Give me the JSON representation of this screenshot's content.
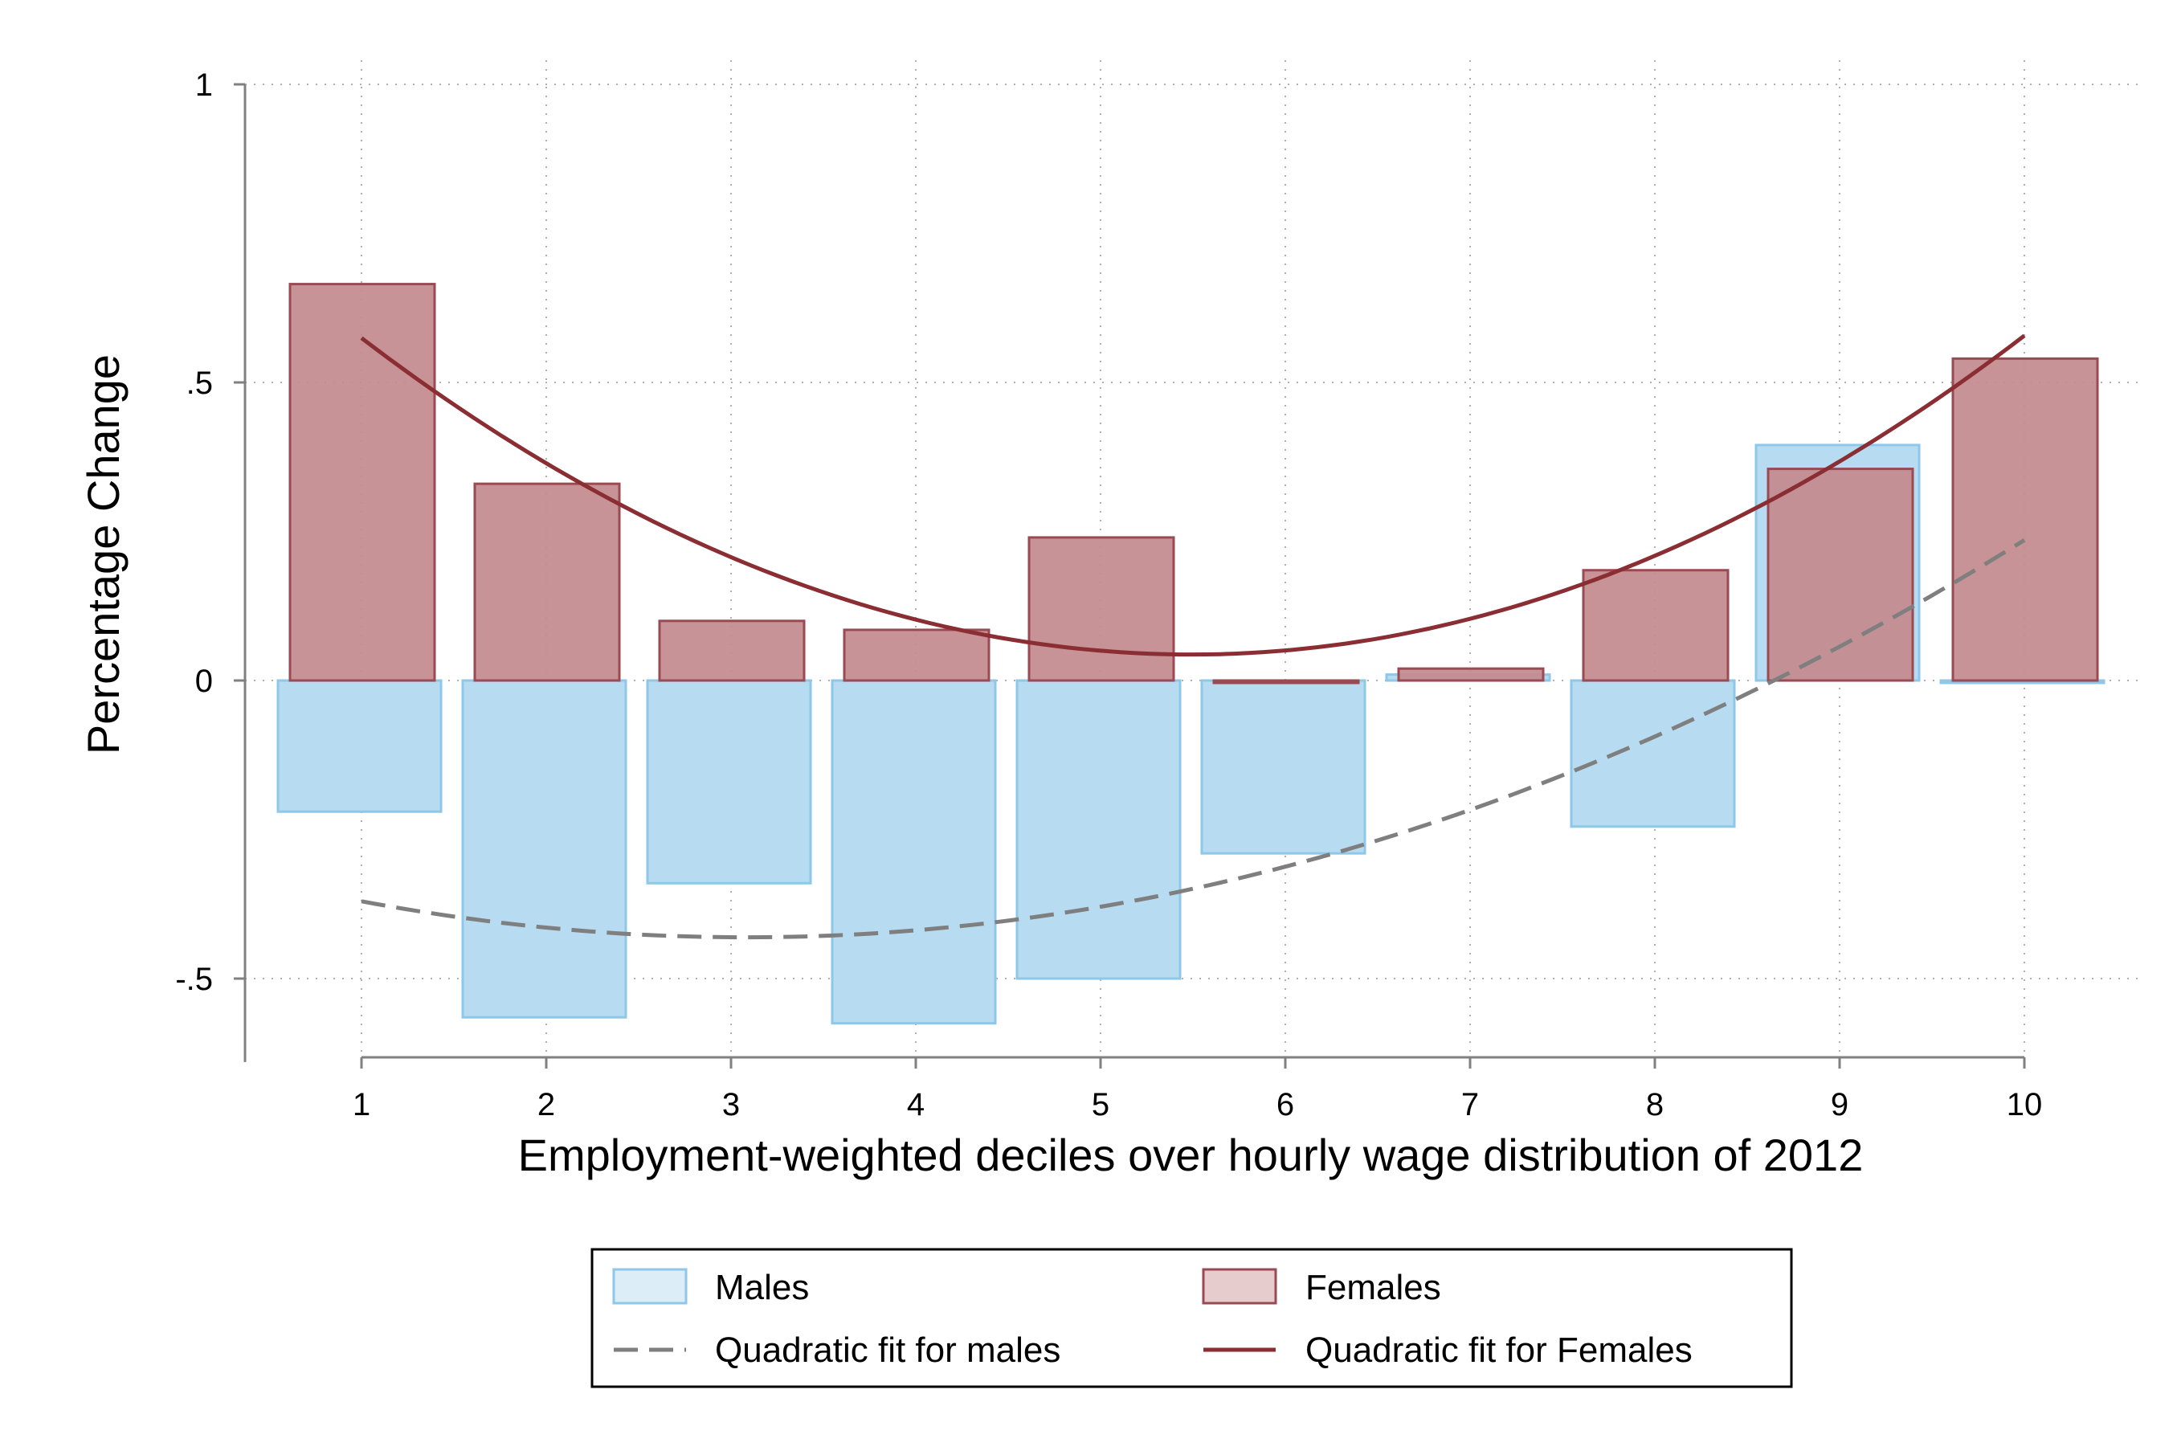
{
  "chart_data": {
    "type": "bar",
    "categories": [
      "1",
      "2",
      "3",
      "4",
      "5",
      "6",
      "7",
      "8",
      "9",
      "10"
    ],
    "x": [
      1,
      2,
      3,
      4,
      5,
      6,
      7,
      8,
      9,
      10
    ],
    "series": [
      {
        "name": "Males",
        "values": [
          -0.22,
          -0.565,
          -0.34,
          -0.575,
          -0.5,
          -0.29,
          0.01,
          -0.245,
          0.395,
          -0.003
        ]
      },
      {
        "name": "Females",
        "values": [
          0.665,
          0.33,
          0.1,
          0.085,
          0.24,
          -0.003,
          0.02,
          0.185,
          0.355,
          0.54
        ]
      }
    ],
    "fits": [
      {
        "name": "Quadratic fit for males",
        "style": "dashed",
        "color": "#7f7f7f",
        "y": [
          -0.37,
          -0.415,
          -0.432,
          -0.418,
          -0.38,
          -0.31,
          -0.215,
          -0.095,
          0.05,
          0.24
        ]
      },
      {
        "name": "Quadratic fit for Females",
        "style": "solid",
        "color": "#8b2e33",
        "y": [
          0.6,
          0.355,
          0.19,
          0.085,
          0.037,
          0.05,
          0.12,
          0.25,
          0.37,
          0.55
        ]
      }
    ],
    "xlabel": "Employment-weighted deciles over hourly wage distribution of 2012",
    "ylabel": "Percentage Change",
    "ylim": [
      -0.64,
      1.0
    ],
    "xlim": [
      0.33,
      10.65
    ],
    "yticks": [
      -0.5,
      0,
      0.5,
      1
    ],
    "ytick_labels": [
      "-.5",
      "0",
      ".5",
      "1"
    ],
    "xticks": [
      1,
      2,
      3,
      4,
      5,
      6,
      7,
      8,
      9,
      10
    ],
    "xtick_labels": [
      "1",
      "2",
      "3",
      "4",
      "5",
      "6",
      "7",
      "8",
      "9",
      "10"
    ],
    "grid": true,
    "legend_position": "bottom",
    "colors": {
      "males_fill": "#b7dcf1",
      "males_edge": "#8ec7e8",
      "females_fill": "#c48b8e",
      "females_edge": "#9a4a52",
      "grid": "#b0b0b0",
      "axis": "#808080"
    }
  }
}
